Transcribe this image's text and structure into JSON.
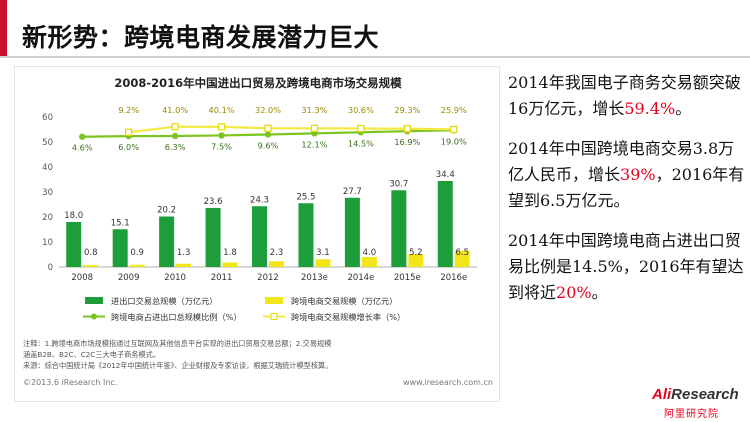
{
  "slide": {
    "title": "新形势：跨境电商发展潜力巨大",
    "accent_color": "#c8102e"
  },
  "side_text": {
    "p1_a": "2014年我国电子商务交易额突破16万亿元，增长",
    "p1_red": "59.4%",
    "p1_b": "。",
    "p2_a": "2014年中国跨境电商交易3.8万亿人民币，增长",
    "p2_red": "39%",
    "p2_b": "，2016年有望到6.5万亿元。",
    "p3_a": "2014年中国跨境电商占进出口贸易比例是14.5%，2016年有望达到将近",
    "p3_red": "20%",
    "p3_b": "。"
  },
  "logo": {
    "name_ai": "Ali",
    "name_rest": "Research",
    "sub": "阿里研究院"
  },
  "chart_data": {
    "type": "bar",
    "title": "2008-2016年中国进出口贸易及跨境电商市场交易规模",
    "categories": [
      "2008",
      "2009",
      "2010",
      "2011",
      "2012",
      "2013e",
      "2014e",
      "2015e",
      "2016e"
    ],
    "ylim": [
      0,
      60
    ],
    "yticks": [
      0,
      10,
      20,
      30,
      40,
      50,
      60
    ],
    "series": [
      {
        "name": "进出口交易总规模（万亿元）",
        "kind": "bar",
        "color": "#1e9e3a",
        "values": [
          18.0,
          15.1,
          20.2,
          23.6,
          24.3,
          25.5,
          27.7,
          30.7,
          34.4
        ],
        "labels": [
          "18.0",
          "15.1",
          "20.2",
          "23.6",
          "24.3",
          "25.5",
          "27.7",
          "30.7",
          "34.4"
        ]
      },
      {
        "name": "跨境电商交易规模（万亿元）",
        "kind": "bar",
        "color": "#f2e61b",
        "values": [
          0.8,
          0.9,
          1.3,
          1.8,
          2.3,
          3.1,
          4.0,
          5.2,
          6.5
        ],
        "labels": [
          "0.8",
          "0.9",
          "1.3",
          "1.8",
          "2.3",
          "3.1",
          "4.0",
          "5.2",
          "6.5"
        ]
      },
      {
        "name": "跨境电商占进出口总规模比例（%）",
        "kind": "line",
        "color": "#7cc520",
        "values": [
          4.6,
          6.0,
          6.3,
          7.5,
          9.6,
          12.1,
          14.5,
          16.9,
          19.0
        ],
        "labels": [
          "4.6%",
          "6.0%",
          "6.3%",
          "7.5%",
          "9.6%",
          "12.1%",
          "14.5%",
          "16.9%",
          "19.0%"
        ]
      },
      {
        "name": "跨境电商交易规模增长率（%）",
        "kind": "line",
        "color": "#f2ea42",
        "values": [
          null,
          9.2,
          41.0,
          40.1,
          32.0,
          31.3,
          30.6,
          29.3,
          25.9
        ],
        "labels": [
          "",
          "9.2%",
          "41.0%",
          "40.1%",
          "32.0%",
          "31.3%",
          "30.6%",
          "29.3%",
          "25.9%"
        ]
      }
    ],
    "notes": [
      "注释：1.跨境电商市场规模指通过互联网及其他信息平台实现的进出口贸易交易总额；2.交易规模",
      "涵盖B2B、B2C、C2C三大电子商务模式。",
      "来源：综合中国统计局《2012年中国统计年鉴》、企业财报及专家访谈，根据艾瑞统计模型核算。"
    ],
    "copyright": "©2013.6 iResearch Inc.",
    "website": "www.iresearch.com.cn"
  }
}
